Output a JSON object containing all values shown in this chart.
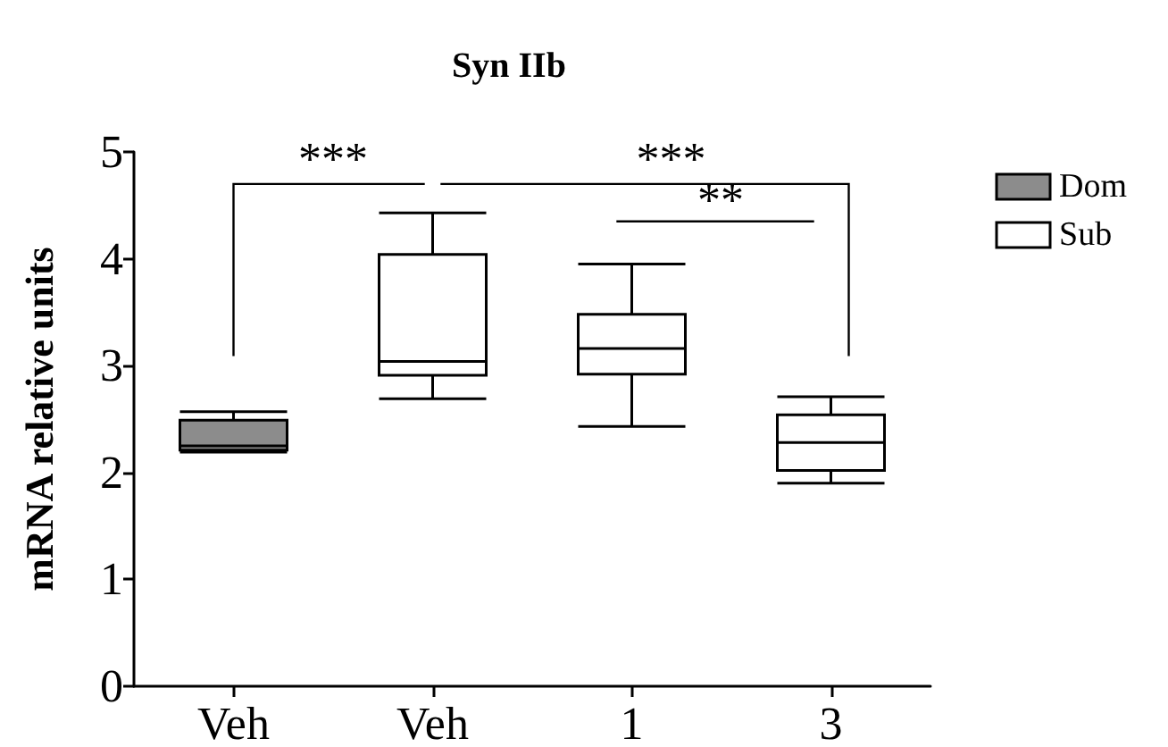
{
  "chart_data": {
    "type": "box",
    "title": "Syn IIb",
    "ylabel": "mRNA relative units",
    "categories": [
      "Veh",
      "Veh",
      "1",
      "3"
    ],
    "series": [
      {
        "name": "Dom",
        "color": "#8c8c8c",
        "boxes": [
          {
            "low": 2.19,
            "q1": 2.21,
            "median": 2.25,
            "q3": 2.49,
            "high": 2.57
          },
          null,
          null,
          null
        ]
      },
      {
        "name": "Sub",
        "color": "#ffffff",
        "boxes": [
          null,
          {
            "low": 2.69,
            "q1": 2.91,
            "median": 3.04,
            "q3": 4.04,
            "high": 4.43
          },
          {
            "low": 2.43,
            "q1": 2.92,
            "median": 3.16,
            "q3": 3.48,
            "high": 3.95
          },
          {
            "low": 1.9,
            "q1": 2.02,
            "median": 2.28,
            "q3": 2.54,
            "high": 2.71
          }
        ]
      }
    ],
    "ylim": [
      0,
      5
    ],
    "yticks": [
      0,
      1,
      2,
      3,
      4,
      5
    ],
    "annotations": [
      "***",
      "***",
      "**"
    ],
    "grid": false,
    "legend": "top right"
  }
}
